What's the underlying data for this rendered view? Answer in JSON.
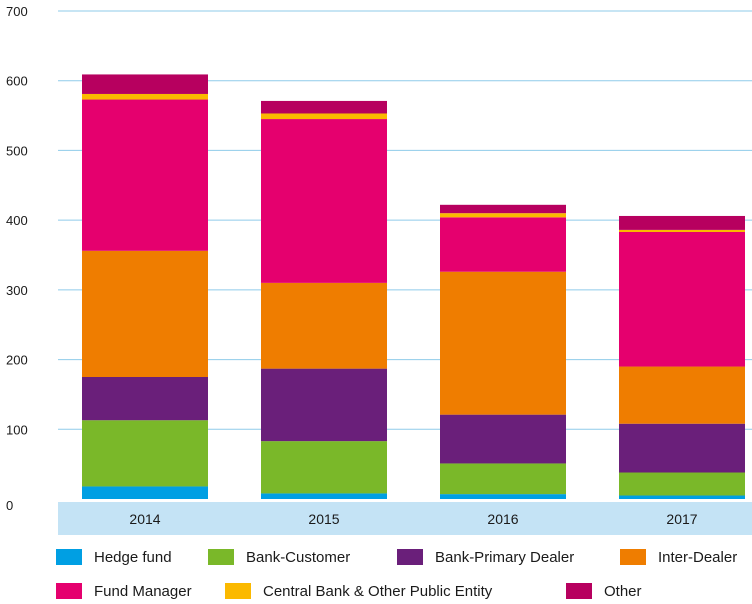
{
  "chart_data": {
    "type": "bar",
    "stacked": true,
    "categories": [
      "2014",
      "2015",
      "2016",
      "2017"
    ],
    "ylim": [
      0,
      700
    ],
    "yticks": [
      0,
      100,
      200,
      300,
      400,
      500,
      600,
      700
    ],
    "grid": true,
    "legend_position": "bottom",
    "series": [
      {
        "name": "Hedge fund",
        "color": "#009fe3",
        "values": [
          18,
          8,
          7,
          5
        ]
      },
      {
        "name": "Bank-Customer",
        "color": "#7ab829",
        "values": [
          95,
          75,
          44,
          33
        ]
      },
      {
        "name": "Bank-Primary Dealer",
        "color": "#6a1f7a",
        "values": [
          62,
          104,
          70,
          70
        ]
      },
      {
        "name": "Inter-Dealer",
        "color": "#ef7d00",
        "values": [
          181,
          123,
          205,
          82
        ]
      },
      {
        "name": "Fund Manager",
        "color": "#e5006e",
        "values": [
          217,
          235,
          78,
          193
        ]
      },
      {
        "name": "Central Bank & Other Public Entity",
        "color": "#fbb900",
        "values": [
          8,
          8,
          6,
          3
        ]
      },
      {
        "name": "Other",
        "color": "#b7005f",
        "values": [
          28,
          18,
          12,
          20
        ]
      }
    ]
  }
}
